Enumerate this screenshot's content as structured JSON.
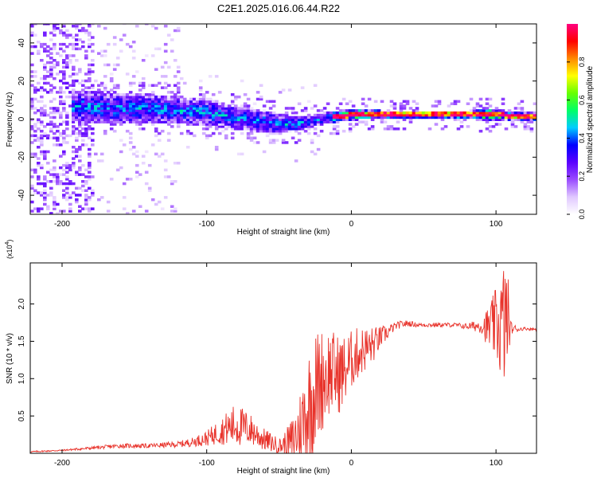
{
  "title": "C2E1.2025.016.06.44.R22",
  "chart_data": [
    {
      "type": "heatmap",
      "title": "C2E1.2025.016.06.44.R22",
      "xlabel": "Height of straight line (km)",
      "ylabel": "Frequency (Hz)",
      "xlim": [
        -222,
        128
      ],
      "ylim": [
        -50,
        50
      ],
      "xticks": [
        -200,
        -100,
        0,
        100
      ],
      "xtick_labels": [
        "-200",
        "-100",
        "0",
        "100"
      ],
      "yticks": [
        -40,
        -20,
        0,
        20,
        40
      ],
      "ytick_labels": [
        "-40",
        "-20",
        "0",
        "20",
        "40"
      ],
      "ridge": {
        "x": [
          -195,
          -180,
          -160,
          -140,
          -120,
          -100,
          -80,
          -60,
          -50,
          -40,
          -30,
          -20,
          -10,
          0,
          20,
          40,
          60,
          80,
          90,
          100,
          110,
          128
        ],
        "freq": [
          6,
          6,
          5,
          5,
          4,
          3,
          0,
          -2,
          -3,
          -3,
          -2,
          0,
          1,
          2,
          2,
          2,
          2,
          2,
          2,
          2,
          1,
          1
        ],
        "width": [
          8,
          8,
          8,
          8,
          7,
          7,
          6,
          6,
          5,
          4,
          3,
          3,
          3,
          3,
          2,
          2,
          2,
          2,
          3,
          3,
          2,
          2
        ]
      },
      "colorbar": {
        "label": "Normalized spectral amplitude",
        "range": [
          0,
          1
        ],
        "ticks": [
          0.0,
          0.2,
          0.4,
          0.6,
          0.8
        ],
        "tick_labels": [
          "0.0",
          "0.2",
          "0.4",
          "0.6",
          "0.8"
        ],
        "colors": [
          "#ffffff",
          "#e0c8ff",
          "#9a4cff",
          "#5a00ff",
          "#0000ff",
          "#00ccff",
          "#00ff66",
          "#66ff00",
          "#ffff00",
          "#ff8800",
          "#ff0000",
          "#ff0080"
        ]
      }
    },
    {
      "type": "line",
      "xlabel": "Height of straight line (km)",
      "ylabel": "SNR (10 * v/v)",
      "scale_label": "(x10",
      "scale_exponent": "4",
      "scale_close": ")",
      "xlim": [
        -222,
        128
      ],
      "ylim": [
        0,
        2.55
      ],
      "xticks": [
        -200,
        -100,
        0,
        100
      ],
      "xtick_labels": [
        "-200",
        "-100",
        "0",
        "100"
      ],
      "yticks": [
        0.5,
        1.0,
        1.5,
        2.0
      ],
      "ytick_labels": [
        "0.5",
        "1.0",
        "1.5",
        "2.0"
      ],
      "series": [
        {
          "name": "SNR",
          "color": "#e8322a",
          "x": [
            -222,
            -200,
            -180,
            -160,
            -140,
            -120,
            -110,
            -100,
            -90,
            -80,
            -70,
            -60,
            -50,
            -45,
            -40,
            -35,
            -30,
            -25,
            -20,
            -15,
            -10,
            -5,
            0,
            5,
            10,
            15,
            20,
            25,
            30,
            35,
            40,
            45,
            50,
            60,
            70,
            80,
            90,
            95,
            100,
            103,
            106,
            108,
            110,
            115,
            120,
            128
          ],
          "y": [
            0.02,
            0.04,
            0.07,
            0.1,
            0.1,
            0.12,
            0.15,
            0.2,
            0.3,
            0.38,
            0.32,
            0.18,
            0.1,
            0.12,
            0.18,
            0.35,
            0.6,
            0.85,
            1.0,
            1.1,
            1.05,
            1.1,
            1.25,
            1.35,
            1.4,
            1.45,
            1.55,
            1.62,
            1.7,
            1.73,
            1.74,
            1.72,
            1.72,
            1.72,
            1.72,
            1.7,
            1.71,
            1.68,
            1.72,
            1.7,
            1.75,
            1.8,
            1.68,
            1.66,
            1.67,
            1.66
          ],
          "noise": [
            0.01,
            0.01,
            0.02,
            0.03,
            0.03,
            0.04,
            0.06,
            0.1,
            0.18,
            0.3,
            0.22,
            0.15,
            0.1,
            0.2,
            0.35,
            0.55,
            0.8,
            0.8,
            0.7,
            0.6,
            0.55,
            0.5,
            0.4,
            0.35,
            0.3,
            0.25,
            0.15,
            0.1,
            0.05,
            0.05,
            0.04,
            0.03,
            0.03,
            0.03,
            0.03,
            0.04,
            0.1,
            0.3,
            0.5,
            0.7,
            0.9,
            0.7,
            0.1,
            0.03,
            0.02,
            0.02
          ]
        }
      ]
    }
  ]
}
